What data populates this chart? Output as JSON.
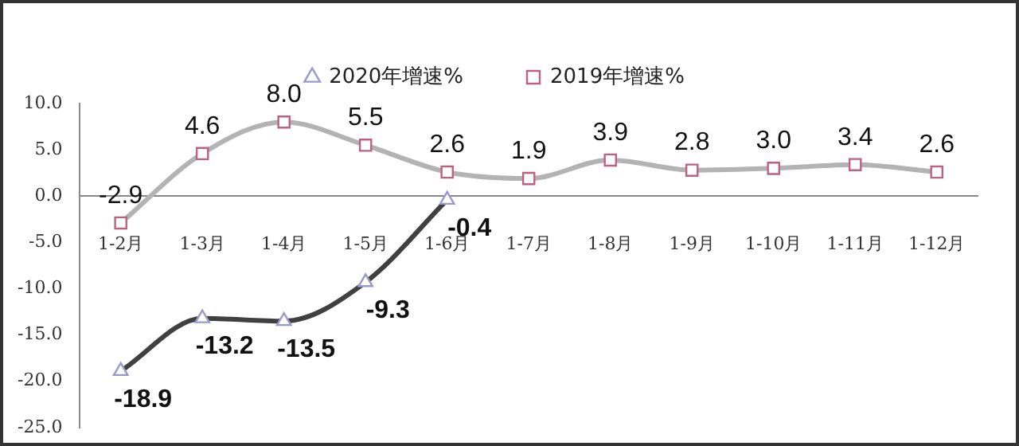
{
  "chart_data": {
    "type": "line",
    "categories": [
      "1-2月",
      "1-3月",
      "1-4月",
      "1-5月",
      "1-6月",
      "1-7月",
      "1-8月",
      "1-9月",
      "1-10月",
      "1-11月",
      "1-12月"
    ],
    "series": [
      {
        "name": "2020年增速%",
        "color": "#404040",
        "marker": "triangle",
        "values": [
          -18.9,
          -13.2,
          -13.5,
          -9.3,
          -0.4,
          null,
          null,
          null,
          null,
          null,
          null
        ]
      },
      {
        "name": "2019年增速%",
        "color": "#b3b3b3",
        "marker": "square",
        "values": [
          -2.9,
          4.6,
          8.0,
          5.5,
          2.6,
          1.9,
          3.9,
          2.8,
          3.0,
          3.4,
          2.6
        ],
        "value_labels": [
          "-2.9",
          "4.6",
          "8.0",
          "5.5",
          "2.6",
          "1.9",
          "3.9",
          "2.8",
          "3.0",
          "3.4",
          "2.6"
        ]
      }
    ],
    "ylim": [
      -25,
      10
    ],
    "yticks": [
      {
        "value": -25,
        "label": "-25.0"
      },
      {
        "value": -20,
        "label": "-20.0"
      },
      {
        "value": -15,
        "label": "-15.0"
      },
      {
        "value": -10,
        "label": "-10.0"
      },
      {
        "value": -5,
        "label": "-5.0"
      },
      {
        "value": 0,
        "label": "0.0"
      },
      {
        "value": 5,
        "label": "5.0"
      },
      {
        "value": 10,
        "label": "10.0"
      }
    ],
    "grid": false,
    "legend": "top",
    "data_labels": true
  }
}
